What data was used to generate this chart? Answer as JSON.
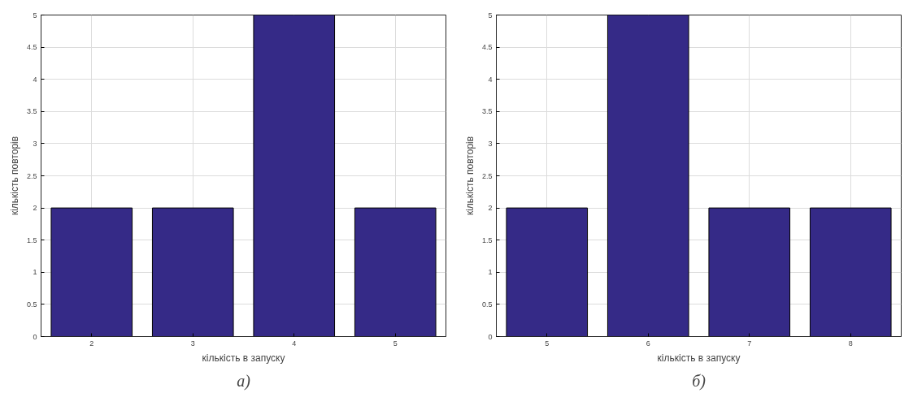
{
  "chart_data": [
    {
      "type": "bar",
      "x": [
        2,
        3,
        4,
        5
      ],
      "values": [
        2,
        2,
        5,
        2
      ],
      "color": "#352a87",
      "xlim": [
        1.5,
        5.5
      ],
      "xticks": [
        2,
        3,
        4,
        5
      ],
      "ylim": [
        0,
        5
      ],
      "yticks": [
        0,
        0.5,
        1,
        1.5,
        2,
        2.5,
        3,
        3.5,
        4,
        4.5,
        5
      ],
      "xlabel": "кількість в запуску",
      "ylabel": "кількість повторів",
      "grid": true,
      "annotations": [
        "а)"
      ]
    },
    {
      "type": "bar",
      "x": [
        5,
        6,
        7,
        8
      ],
      "values": [
        2,
        5,
        2,
        2
      ],
      "color": "#352a87",
      "xlim": [
        4.5,
        8.5
      ],
      "xticks": [
        5,
        6,
        7,
        8
      ],
      "ylim": [
        0,
        5
      ],
      "yticks": [
        0,
        0.5,
        1,
        1.5,
        2,
        2.5,
        3,
        3.5,
        4,
        4.5,
        5
      ],
      "xlabel": "кількість в запуску",
      "ylabel": "кількість повторів",
      "grid": true,
      "annotations": [
        "б)"
      ]
    }
  ]
}
